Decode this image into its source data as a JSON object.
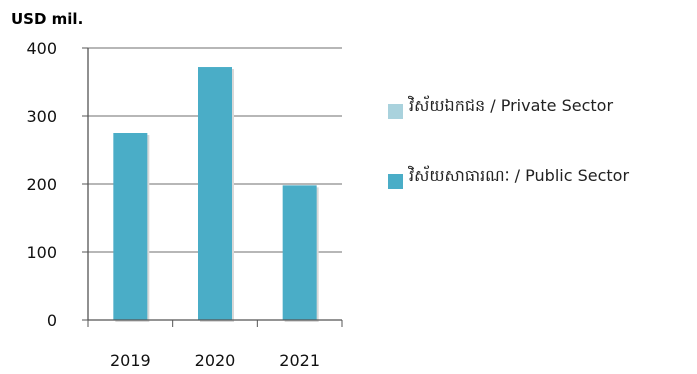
{
  "chart_data": {
    "type": "bar",
    "ylabel": "USD mil.",
    "xlabel": "",
    "categories": [
      "2019",
      "2020",
      "2021"
    ],
    "series": [
      {
        "name": "វិស័យឯកជន / Private Sector",
        "values": [
          0,
          0,
          0
        ]
      },
      {
        "name": "វិស័យសាធារណៈ / Public Sector",
        "values": [
          275,
          372,
          198
        ]
      }
    ],
    "ylim": [
      0,
      400
    ],
    "yticks": [
      "0",
      "100",
      "200",
      "300",
      "400"
    ],
    "grid": true,
    "legend_position": "right"
  },
  "colors": {
    "private": "#a9d2dd",
    "public": "#4aadc7",
    "grid": "#8c8c8c",
    "axis": "#555555"
  }
}
